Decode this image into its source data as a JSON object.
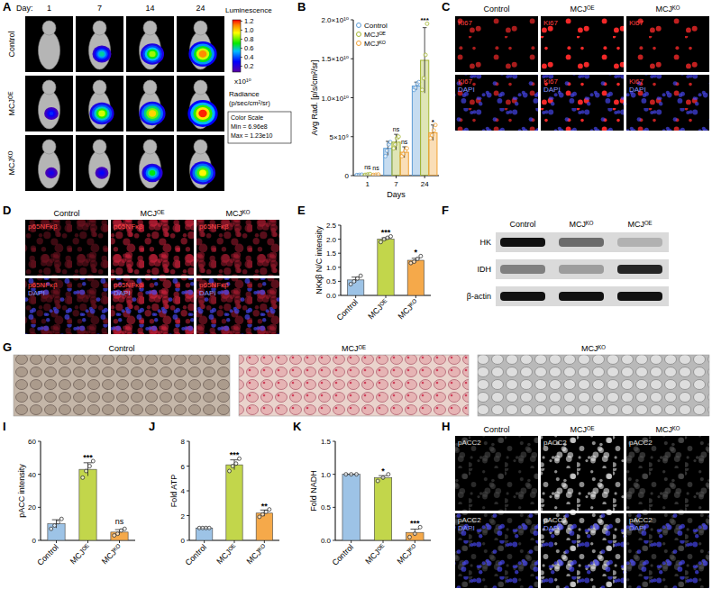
{
  "panel_letters": [
    "A",
    "B",
    "C",
    "D",
    "E",
    "F",
    "G",
    "H",
    "I",
    "J",
    "K"
  ],
  "luminescence": {
    "day_label": "Day:",
    "days": [
      "1",
      "7",
      "14",
      "24"
    ],
    "groups": [
      "Control",
      "MCJᴼᴱ",
      "MCJᴷᴼ"
    ],
    "signal": [
      [
        null,
        0.6,
        0.85,
        1.1
      ],
      [
        0.35,
        0.9,
        1.0,
        1.2
      ],
      [
        0.25,
        0.3,
        0.7,
        0.95
      ]
    ],
    "colorbar": {
      "title": "Luminescence",
      "lim": [
        0.0696,
        1.23
      ],
      "ticks": [
        1.2,
        {
          "value": 1,
          "label": "1.0"
        },
        0.8,
        0.6,
        0.4,
        0.2
      ],
      "multiplier": "x10¹⁰",
      "unit_title": "Radiance",
      "unit": "(p/sec/cm²/sr)",
      "scale_title": "Color Scale",
      "min_label": "Min = 6.96e8",
      "max_label": "Max = 1.23e10"
    }
  },
  "chart_data": [
    {
      "type": "bar",
      "x_title": "Days",
      "y_title": "Avg Rad. [p/s/cm²/sr]",
      "categories": [
        "1",
        "7",
        "24"
      ],
      "ylim": [
        0,
        20000000000
      ],
      "yticks": [
        0,
        {
          "value": 5000000000,
          "label": "5×10⁹"
        },
        {
          "value": 10000000000,
          "label": "1.0×10¹⁰"
        },
        {
          "value": 15000000000,
          "label": "1.5×10¹⁰"
        },
        {
          "value": 20000000000,
          "label": "2.0×10¹⁰"
        }
      ],
      "legend": "top-left",
      "marker": "circle",
      "series": [
        {
          "name": "Control",
          "color": "#5b9bd5",
          "values": [
            100000000,
            3500000000,
            11500000000
          ],
          "errors": [
            50000000,
            900000000,
            500000000
          ],
          "points": [
            [
              80000000,
              100000000,
              120000000
            ],
            [
              2500000000,
              3200000000,
              4000000000,
              4300000000
            ],
            [
              11000000000,
              11300000000,
              11800000000,
              12000000000
            ]
          ],
          "significance": [
            null,
            null,
            null
          ]
        },
        {
          "name": "MCJᴼᴱ",
          "color": "#a3b52f",
          "values": [
            150000000,
            4300000000,
            14800000000
          ],
          "errors": [
            60000000,
            1000000000,
            4200000000
          ],
          "points": [
            [
              100000000,
              150000000,
              200000000
            ],
            [
              3500000000,
              4000000000,
              4800000000,
              5000000000
            ],
            [
              11000000000,
              12500000000,
              15500000000,
              19500000000
            ]
          ],
          "significance": [
            "ns",
            "ns",
            "***"
          ]
        },
        {
          "name": "MCJᴷᴼ",
          "color": "#f0a030",
          "values": [
            120000000,
            3000000000,
            5500000000
          ],
          "errors": [
            50000000,
            700000000,
            1000000000
          ],
          "points": [
            [
              90000000,
              120000000,
              150000000
            ],
            [
              2500000000,
              2800000000,
              3200000000,
              3500000000
            ],
            [
              4800000000,
              5200000000,
              5800000000,
              6500000000
            ]
          ],
          "significance": [
            "ns",
            "ns",
            "*"
          ]
        }
      ]
    },
    {
      "type": "bar",
      "y_title": "NKκβ N/C intensity",
      "categories": [
        "Control",
        "MCJᴼᴱ",
        "MCJᴷᴼ"
      ],
      "values": [
        0.55,
        2.0,
        1.25
      ],
      "errors": [
        0.1,
        0.05,
        0.07
      ],
      "points": [
        [
          0.4,
          0.5,
          0.6,
          0.7
        ],
        [
          1.9,
          2.0,
          2.05,
          2.1
        ],
        [
          1.15,
          1.2,
          1.3,
          1.4
        ]
      ],
      "significance": [
        null,
        "***",
        "*"
      ],
      "colors": [
        "#9dc3e6",
        "#c2d64b",
        "#f5a94a"
      ],
      "ylim": [
        0,
        2.5
      ],
      "yticks": [
        {
          "value": 0,
          "label": "0.0"
        },
        0.5,
        {
          "value": 1,
          "label": "1.0"
        },
        1.5,
        {
          "value": 2,
          "label": "2.0"
        },
        2.5
      ],
      "marker": "circle"
    },
    {
      "type": "bar",
      "y_title": "pACC intensity",
      "categories": [
        "Control",
        "MCJᴼᴱ",
        "MCJᴷᴼ"
      ],
      "values": [
        10,
        43,
        5
      ],
      "errors": [
        2.5,
        4,
        1.5
      ],
      "points": [
        [
          7,
          9,
          11,
          13
        ],
        [
          38,
          42,
          45,
          48
        ],
        [
          3,
          4,
          6,
          7
        ]
      ],
      "significance": [
        null,
        "***",
        "ns"
      ],
      "colors": [
        "#9dc3e6",
        "#c2d64b",
        "#f5a94a"
      ],
      "ylim": [
        0,
        60
      ],
      "yticks": [
        0,
        20,
        40,
        60
      ],
      "marker": "circle"
    },
    {
      "type": "bar",
      "y_title": "Fold ATP",
      "categories": [
        "Control",
        "MCJᴼᴱ",
        "MCJᴷᴼ"
      ],
      "values": [
        1,
        6.1,
        2.2
      ],
      "errors": [
        0,
        0.4,
        0.25
      ],
      "points": [
        [
          1,
          1,
          1,
          1
        ],
        [
          5.6,
          6.0,
          6.2,
          6.6
        ],
        [
          1.9,
          2.1,
          2.3,
          2.5
        ]
      ],
      "significance": [
        null,
        "***",
        "**"
      ],
      "colors": [
        "#9dc3e6",
        "#c2d64b",
        "#f5a94a"
      ],
      "ylim": [
        0,
        8
      ],
      "yticks": [
        0,
        2,
        4,
        6,
        8
      ],
      "marker": "circle"
    },
    {
      "type": "bar",
      "y_title": "Fold NADH",
      "categories": [
        "Control",
        "MCJᴼᴱ",
        "MCJᴷᴼ"
      ],
      "values": [
        1.0,
        0.95,
        0.12
      ],
      "errors": [
        0,
        0.03,
        0.05
      ],
      "points": [
        [
          1,
          1,
          1
        ],
        [
          0.9,
          0.95,
          1.0
        ],
        [
          0.05,
          0.1,
          0.2
        ]
      ],
      "significance": [
        null,
        "*",
        "***"
      ],
      "colors": [
        "#9dc3e6",
        "#c2d64b",
        "#f5a94a"
      ],
      "ylim": [
        0,
        1.5
      ],
      "yticks": [
        {
          "value": 0,
          "label": "0.0"
        },
        0.5,
        {
          "value": 1,
          "label": "1.0"
        },
        1.5
      ],
      "marker": "circle"
    }
  ],
  "ki67": {
    "columns": [
      "Control",
      "MCJᴼᴱ",
      "MCJᴷᴼ"
    ],
    "stain": "Ki67",
    "counterstain": "DAPI"
  },
  "p65": {
    "columns": [
      "Control",
      "MCJᴼᴱ",
      "MCJᴷᴼ"
    ],
    "stain": "p65NFκβ",
    "counterstain": "DAPI"
  },
  "blot": {
    "columns": [
      "Control",
      "MCJᴷᴼ",
      "MCJᴼᴱ"
    ],
    "rows": [
      "HK",
      "IDH",
      "β-actin"
    ],
    "intensity": [
      [
        1,
        0.55,
        0.2
      ],
      [
        0.45,
        0.3,
        0.9
      ],
      [
        1,
        1,
        1
      ]
    ]
  },
  "histology": {
    "columns": [
      "Control",
      "MCJᴼᴱ",
      "MCJᴷᴼ"
    ]
  },
  "pacc2": {
    "columns": [
      "Control",
      "MCJᴼᴱ",
      "MCJᴷᴼ"
    ],
    "stain": "pACC2",
    "counterstain": "DAPI"
  }
}
